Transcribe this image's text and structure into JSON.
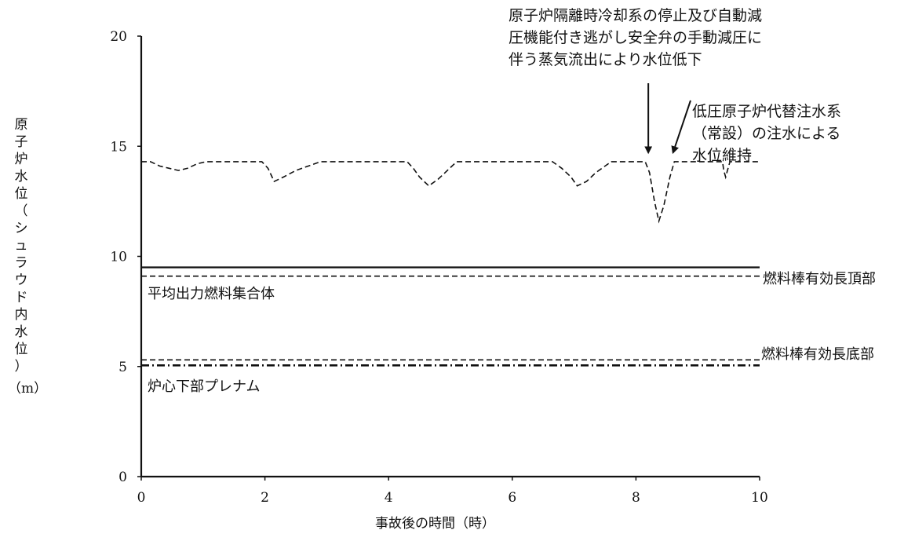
{
  "chart_data": {
    "type": "line",
    "xlabel": "事故後の時間（時）",
    "ylabel": "原子炉水位（シュラウド内水位）",
    "yunit": "（m）",
    "xlim": [
      0,
      10
    ],
    "ylim": [
      0,
      20
    ],
    "xticks": [
      0,
      2,
      4,
      6,
      8,
      10
    ],
    "yticks": [
      0,
      5,
      10,
      15,
      20
    ],
    "grid": false,
    "series": [
      {
        "style": "dashed",
        "x": [
          0,
          0.15,
          0.3,
          0.45,
          0.6,
          0.75,
          0.9,
          1.05,
          1.5,
          1.95,
          2.05,
          2.15,
          2.3,
          2.5,
          2.7,
          2.9,
          3.5,
          4.3,
          4.4,
          4.5,
          4.65,
          4.8,
          4.95,
          5.1,
          5.5,
          6.65,
          6.8,
          6.95,
          7.05,
          7.2,
          7.35,
          7.5,
          7.6,
          8.15,
          8.22,
          8.3,
          8.37,
          8.45,
          8.55,
          8.62,
          8.7,
          9.4,
          9.42,
          9.45,
          9.48,
          9.52,
          10
        ],
        "y": [
          14.3,
          14.3,
          14.1,
          14.0,
          13.9,
          14.0,
          14.2,
          14.3,
          14.3,
          14.3,
          14.0,
          13.4,
          13.6,
          13.9,
          14.1,
          14.3,
          14.3,
          14.3,
          14.0,
          13.6,
          13.2,
          13.5,
          13.9,
          14.3,
          14.3,
          14.3,
          14.0,
          13.6,
          13.2,
          13.4,
          13.8,
          14.1,
          14.3,
          14.3,
          13.8,
          12.5,
          11.6,
          12.3,
          13.6,
          14.3,
          14.3,
          14.3,
          13.9,
          13.6,
          13.9,
          14.3,
          14.3
        ]
      },
      {
        "name": "燃料棒有効長頂部",
        "style": "solid",
        "x": [
          0,
          10
        ],
        "y": [
          9.5,
          9.5
        ]
      },
      {
        "name": "平均出力燃料集合体",
        "style": "dashed",
        "x": [
          0,
          10
        ],
        "y": [
          9.1,
          9.1
        ]
      },
      {
        "name": "燃料棒有効長底部",
        "style": "dashed",
        "x": [
          0,
          10
        ],
        "y": [
          5.3,
          5.3
        ]
      },
      {
        "name": "炉心下部プレナム",
        "style": "dashdot",
        "x": [
          0,
          10
        ],
        "y": [
          5.05,
          5.05
        ]
      }
    ],
    "labels": {
      "top_of_active_fuel": "燃料棒有効長頂部",
      "avg_power_assembly": "平均出力燃料集合体",
      "bottom_of_active_fuel": "燃料棒有効長底部",
      "lower_plenum": "炉心下部プレナム"
    },
    "annotations": [
      {
        "lines": [
          "原子炉隔離時冷却系の停止及び自動減",
          "圧機能付き逃がし安全弁の手動減圧に",
          "伴う蒸気流出により水位低下"
        ],
        "x": 8.2,
        "y": 14.5
      },
      {
        "lines": [
          "低圧原子炉代替注水系",
          "（常設）の注水による",
          "水位維持"
        ],
        "x": 8.6,
        "y": 14.5
      }
    ]
  }
}
